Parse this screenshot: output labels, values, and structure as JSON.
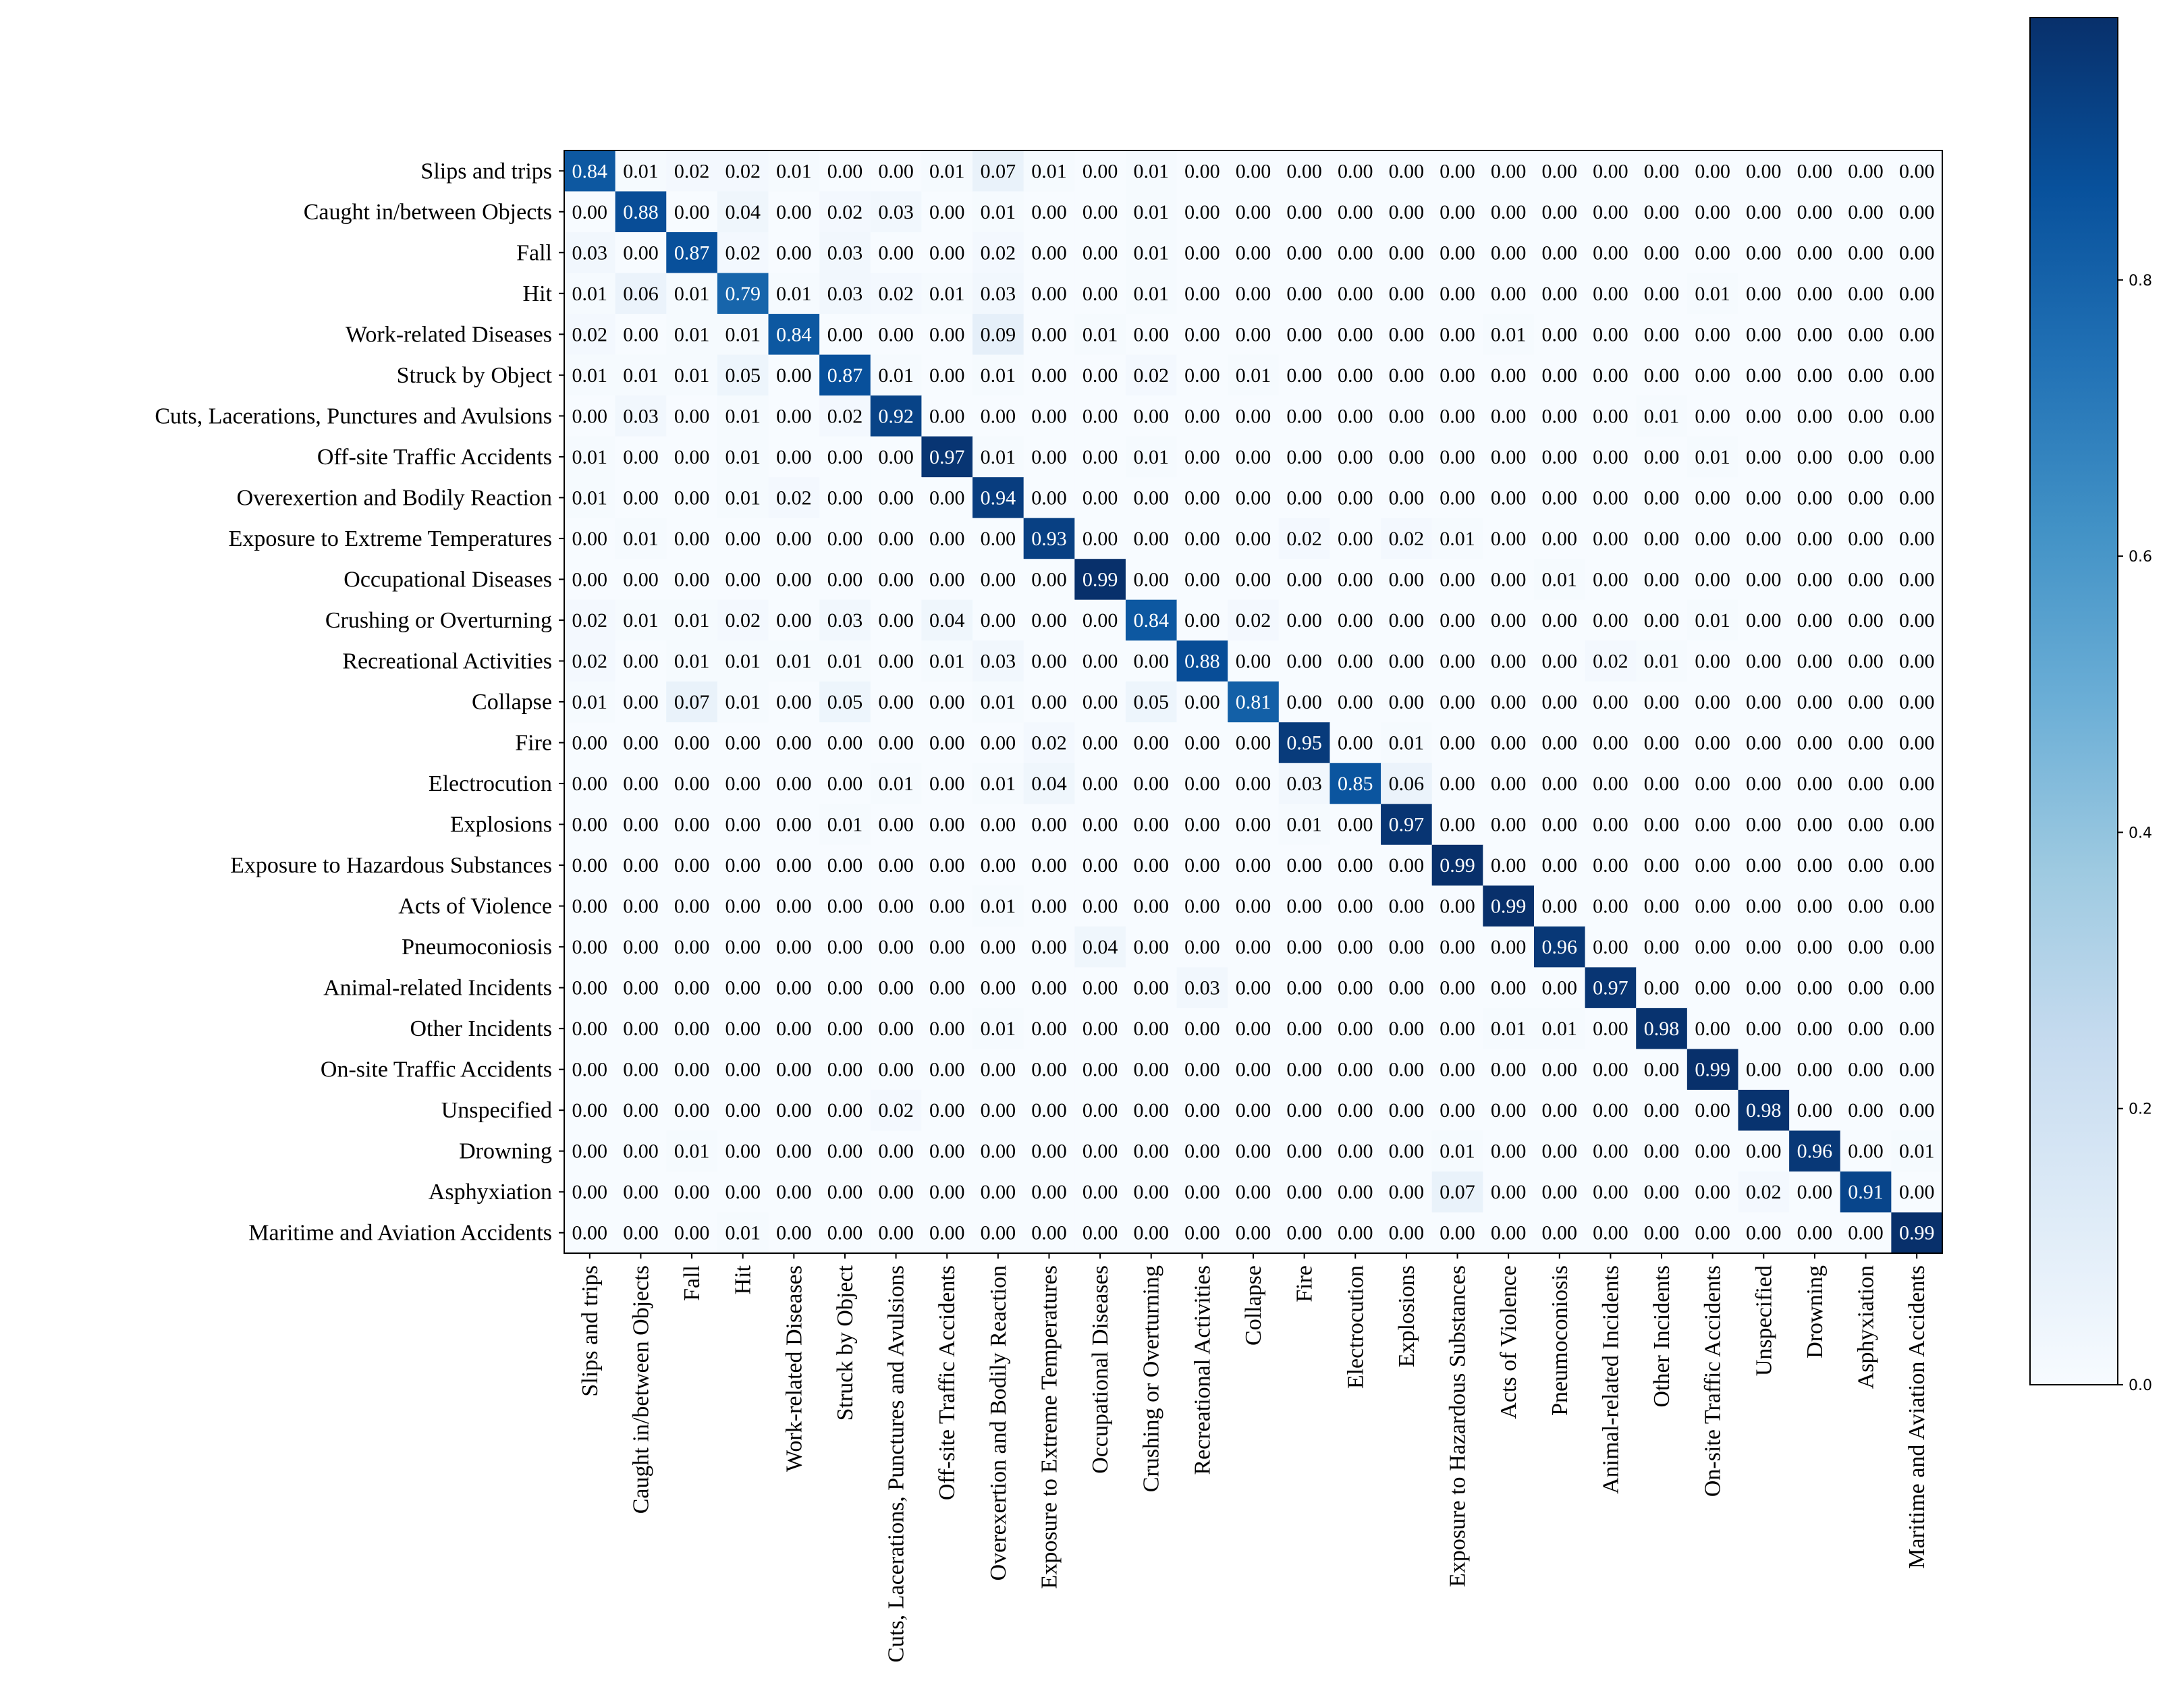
{
  "chart_data": {
    "type": "heatmap",
    "title": "",
    "xlabel": "",
    "ylabel": "",
    "labels": [
      "Slips and trips",
      "Caught in/between Objects",
      "Fall",
      "Hit",
      "Work-related Diseases",
      "Struck by Object",
      "Cuts, Lacerations, Punctures and Avulsions",
      "Off-site Traffic Accidents",
      "Overexertion and Bodily Reaction",
      "Exposure to Extreme Temperatures",
      "Occupational Diseases",
      "Crushing or Overturning",
      "Recreational Activities",
      "Collapse",
      "Fire",
      "Electrocution",
      "Explosions",
      "Exposure to Hazardous Substances",
      "Acts of Violence",
      "Pneumoconiosis",
      "Animal-related Incidents",
      "Other Incidents",
      "On-site Traffic Accidents",
      "Unspecified",
      "Drowning",
      "Asphyxiation",
      "Maritime and Aviation Accidents"
    ],
    "matrix": [
      [
        0.84,
        0.01,
        0.02,
        0.02,
        0.01,
        0.0,
        0.0,
        0.01,
        0.07,
        0.01,
        0.0,
        0.01,
        0.0,
        0.0,
        0.0,
        0.0,
        0.0,
        0.0,
        0.0,
        0.0,
        0.0,
        0.0,
        0.0,
        0.0,
        0.0,
        0.0,
        0.0
      ],
      [
        0.0,
        0.88,
        0.0,
        0.04,
        0.0,
        0.02,
        0.03,
        0.0,
        0.01,
        0.0,
        0.0,
        0.01,
        0.0,
        0.0,
        0.0,
        0.0,
        0.0,
        0.0,
        0.0,
        0.0,
        0.0,
        0.0,
        0.0,
        0.0,
        0.0,
        0.0,
        0.0
      ],
      [
        0.03,
        0.0,
        0.87,
        0.02,
        0.0,
        0.03,
        0.0,
        0.0,
        0.02,
        0.0,
        0.0,
        0.01,
        0.0,
        0.0,
        0.0,
        0.0,
        0.0,
        0.0,
        0.0,
        0.0,
        0.0,
        0.0,
        0.0,
        0.0,
        0.0,
        0.0,
        0.0
      ],
      [
        0.01,
        0.06,
        0.01,
        0.79,
        0.01,
        0.03,
        0.02,
        0.01,
        0.03,
        0.0,
        0.0,
        0.01,
        0.0,
        0.0,
        0.0,
        0.0,
        0.0,
        0.0,
        0.0,
        0.0,
        0.0,
        0.0,
        0.01,
        0.0,
        0.0,
        0.0,
        0.0
      ],
      [
        0.02,
        0.0,
        0.01,
        0.01,
        0.84,
        0.0,
        0.0,
        0.0,
        0.09,
        0.0,
        0.01,
        0.0,
        0.0,
        0.0,
        0.0,
        0.0,
        0.0,
        0.0,
        0.01,
        0.0,
        0.0,
        0.0,
        0.0,
        0.0,
        0.0,
        0.0,
        0.0
      ],
      [
        0.01,
        0.01,
        0.01,
        0.05,
        0.0,
        0.87,
        0.01,
        0.0,
        0.01,
        0.0,
        0.0,
        0.02,
        0.0,
        0.01,
        0.0,
        0.0,
        0.0,
        0.0,
        0.0,
        0.0,
        0.0,
        0.0,
        0.0,
        0.0,
        0.0,
        0.0,
        0.0
      ],
      [
        0.0,
        0.03,
        0.0,
        0.01,
        0.0,
        0.02,
        0.92,
        0.0,
        0.0,
        0.0,
        0.0,
        0.0,
        0.0,
        0.0,
        0.0,
        0.0,
        0.0,
        0.0,
        0.0,
        0.0,
        0.0,
        0.01,
        0.0,
        0.0,
        0.0,
        0.0,
        0.0
      ],
      [
        0.01,
        0.0,
        0.0,
        0.01,
        0.0,
        0.0,
        0.0,
        0.97,
        0.01,
        0.0,
        0.0,
        0.01,
        0.0,
        0.0,
        0.0,
        0.0,
        0.0,
        0.0,
        0.0,
        0.0,
        0.0,
        0.0,
        0.01,
        0.0,
        0.0,
        0.0,
        0.0
      ],
      [
        0.01,
        0.0,
        0.0,
        0.01,
        0.02,
        0.0,
        0.0,
        0.0,
        0.94,
        0.0,
        0.0,
        0.0,
        0.0,
        0.0,
        0.0,
        0.0,
        0.0,
        0.0,
        0.0,
        0.0,
        0.0,
        0.0,
        0.0,
        0.0,
        0.0,
        0.0,
        0.0
      ],
      [
        0.0,
        0.01,
        0.0,
        0.0,
        0.0,
        0.0,
        0.0,
        0.0,
        0.0,
        0.93,
        0.0,
        0.0,
        0.0,
        0.0,
        0.02,
        0.0,
        0.02,
        0.01,
        0.0,
        0.0,
        0.0,
        0.0,
        0.0,
        0.0,
        0.0,
        0.0,
        0.0
      ],
      [
        0.0,
        0.0,
        0.0,
        0.0,
        0.0,
        0.0,
        0.0,
        0.0,
        0.0,
        0.0,
        0.99,
        0.0,
        0.0,
        0.0,
        0.0,
        0.0,
        0.0,
        0.0,
        0.0,
        0.01,
        0.0,
        0.0,
        0.0,
        0.0,
        0.0,
        0.0,
        0.0
      ],
      [
        0.02,
        0.01,
        0.01,
        0.02,
        0.0,
        0.03,
        0.0,
        0.04,
        0.0,
        0.0,
        0.0,
        0.84,
        0.0,
        0.02,
        0.0,
        0.0,
        0.0,
        0.0,
        0.0,
        0.0,
        0.0,
        0.0,
        0.01,
        0.0,
        0.0,
        0.0,
        0.0
      ],
      [
        0.02,
        0.0,
        0.01,
        0.01,
        0.01,
        0.01,
        0.0,
        0.01,
        0.03,
        0.0,
        0.0,
        0.0,
        0.88,
        0.0,
        0.0,
        0.0,
        0.0,
        0.0,
        0.0,
        0.0,
        0.02,
        0.01,
        0.0,
        0.0,
        0.0,
        0.0,
        0.0
      ],
      [
        0.01,
        0.0,
        0.07,
        0.01,
        0.0,
        0.05,
        0.0,
        0.0,
        0.01,
        0.0,
        0.0,
        0.05,
        0.0,
        0.81,
        0.0,
        0.0,
        0.0,
        0.0,
        0.0,
        0.0,
        0.0,
        0.0,
        0.0,
        0.0,
        0.0,
        0.0,
        0.0
      ],
      [
        0.0,
        0.0,
        0.0,
        0.0,
        0.0,
        0.0,
        0.0,
        0.0,
        0.0,
        0.02,
        0.0,
        0.0,
        0.0,
        0.0,
        0.95,
        0.0,
        0.01,
        0.0,
        0.0,
        0.0,
        0.0,
        0.0,
        0.0,
        0.0,
        0.0,
        0.0,
        0.0
      ],
      [
        0.0,
        0.0,
        0.0,
        0.0,
        0.0,
        0.0,
        0.01,
        0.0,
        0.01,
        0.04,
        0.0,
        0.0,
        0.0,
        0.0,
        0.03,
        0.85,
        0.06,
        0.0,
        0.0,
        0.0,
        0.0,
        0.0,
        0.0,
        0.0,
        0.0,
        0.0,
        0.0
      ],
      [
        0.0,
        0.0,
        0.0,
        0.0,
        0.0,
        0.01,
        0.0,
        0.0,
        0.0,
        0.0,
        0.0,
        0.0,
        0.0,
        0.0,
        0.01,
        0.0,
        0.97,
        0.0,
        0.0,
        0.0,
        0.0,
        0.0,
        0.0,
        0.0,
        0.0,
        0.0,
        0.0
      ],
      [
        0.0,
        0.0,
        0.0,
        0.0,
        0.0,
        0.0,
        0.0,
        0.0,
        0.0,
        0.0,
        0.0,
        0.0,
        0.0,
        0.0,
        0.0,
        0.0,
        0.0,
        0.99,
        0.0,
        0.0,
        0.0,
        0.0,
        0.0,
        0.0,
        0.0,
        0.0,
        0.0
      ],
      [
        0.0,
        0.0,
        0.0,
        0.0,
        0.0,
        0.0,
        0.0,
        0.0,
        0.01,
        0.0,
        0.0,
        0.0,
        0.0,
        0.0,
        0.0,
        0.0,
        0.0,
        0.0,
        0.99,
        0.0,
        0.0,
        0.0,
        0.0,
        0.0,
        0.0,
        0.0,
        0.0
      ],
      [
        0.0,
        0.0,
        0.0,
        0.0,
        0.0,
        0.0,
        0.0,
        0.0,
        0.0,
        0.0,
        0.04,
        0.0,
        0.0,
        0.0,
        0.0,
        0.0,
        0.0,
        0.0,
        0.0,
        0.96,
        0.0,
        0.0,
        0.0,
        0.0,
        0.0,
        0.0,
        0.0
      ],
      [
        0.0,
        0.0,
        0.0,
        0.0,
        0.0,
        0.0,
        0.0,
        0.0,
        0.0,
        0.0,
        0.0,
        0.0,
        0.03,
        0.0,
        0.0,
        0.0,
        0.0,
        0.0,
        0.0,
        0.0,
        0.97,
        0.0,
        0.0,
        0.0,
        0.0,
        0.0,
        0.0
      ],
      [
        0.0,
        0.0,
        0.0,
        0.0,
        0.0,
        0.0,
        0.0,
        0.0,
        0.01,
        0.0,
        0.0,
        0.0,
        0.0,
        0.0,
        0.0,
        0.0,
        0.0,
        0.0,
        0.01,
        0.01,
        0.0,
        0.98,
        0.0,
        0.0,
        0.0,
        0.0,
        0.0
      ],
      [
        0.0,
        0.0,
        0.0,
        0.0,
        0.0,
        0.0,
        0.0,
        0.0,
        0.0,
        0.0,
        0.0,
        0.0,
        0.0,
        0.0,
        0.0,
        0.0,
        0.0,
        0.0,
        0.0,
        0.0,
        0.0,
        0.0,
        0.99,
        0.0,
        0.0,
        0.0,
        0.0
      ],
      [
        0.0,
        0.0,
        0.0,
        0.0,
        0.0,
        0.0,
        0.02,
        0.0,
        0.0,
        0.0,
        0.0,
        0.0,
        0.0,
        0.0,
        0.0,
        0.0,
        0.0,
        0.0,
        0.0,
        0.0,
        0.0,
        0.0,
        0.0,
        0.98,
        0.0,
        0.0,
        0.0
      ],
      [
        0.0,
        0.0,
        0.01,
        0.0,
        0.0,
        0.0,
        0.0,
        0.0,
        0.0,
        0.0,
        0.0,
        0.0,
        0.0,
        0.0,
        0.0,
        0.0,
        0.0,
        0.01,
        0.0,
        0.0,
        0.0,
        0.0,
        0.0,
        0.0,
        0.96,
        0.0,
        0.01
      ],
      [
        0.0,
        0.0,
        0.0,
        0.0,
        0.0,
        0.0,
        0.0,
        0.0,
        0.0,
        0.0,
        0.0,
        0.0,
        0.0,
        0.0,
        0.0,
        0.0,
        0.0,
        0.07,
        0.0,
        0.0,
        0.0,
        0.0,
        0.0,
        0.02,
        0.0,
        0.91,
        0.0
      ],
      [
        0.0,
        0.0,
        0.0,
        0.01,
        0.0,
        0.0,
        0.0,
        0.0,
        0.0,
        0.0,
        0.0,
        0.0,
        0.0,
        0.0,
        0.0,
        0.0,
        0.0,
        0.0,
        0.0,
        0.0,
        0.0,
        0.0,
        0.0,
        0.0,
        0.0,
        0.0,
        0.99
      ]
    ],
    "colormap": "Blues",
    "colorbar": {
      "range": [
        0.0,
        0.99
      ],
      "ticks": [
        "0.0",
        "0.2",
        "0.4",
        "0.6",
        "0.8"
      ]
    },
    "colors": {
      "low": "#f7fbff",
      "high": "#08306b"
    }
  }
}
